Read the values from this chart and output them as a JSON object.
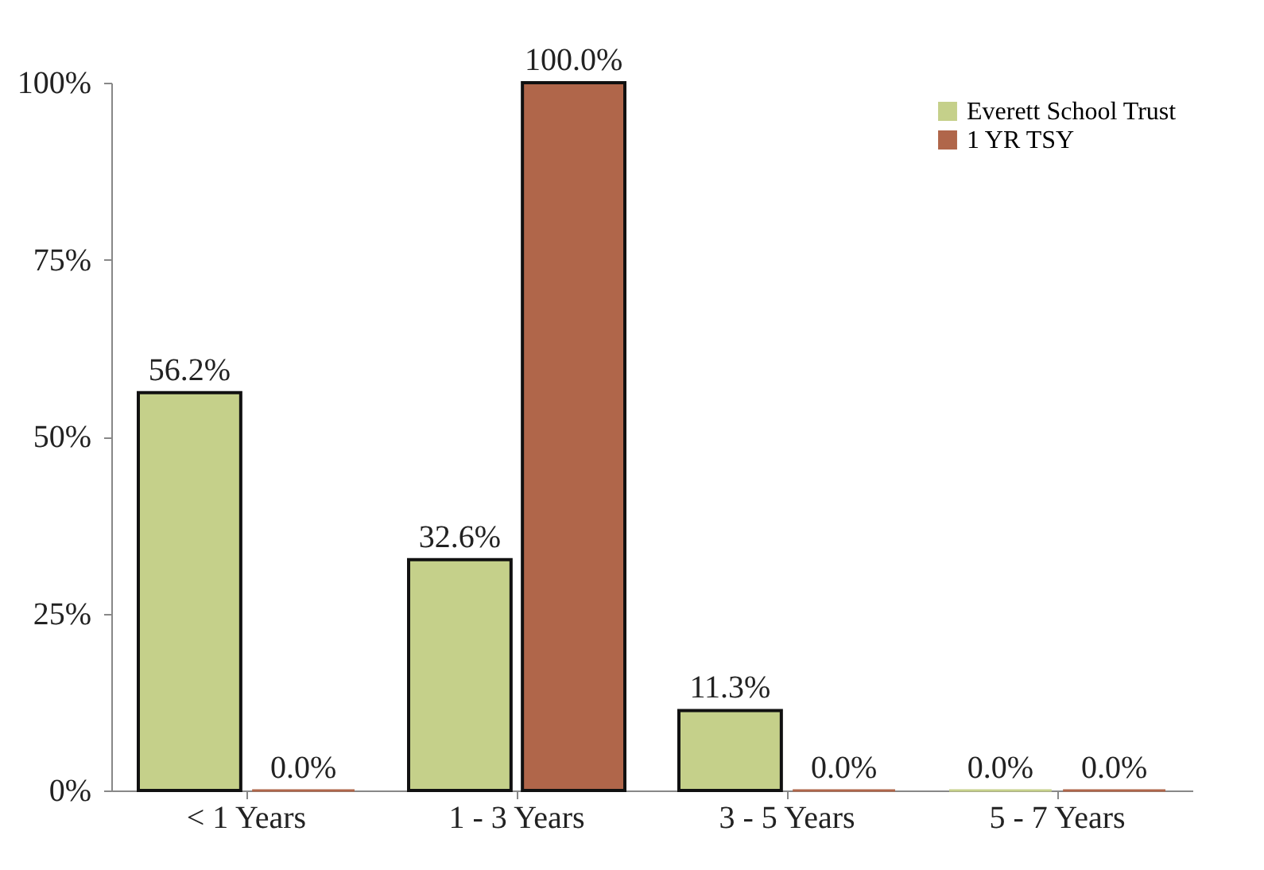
{
  "chart_data": {
    "type": "bar",
    "categories": [
      "< 1 Years",
      "1 - 3 Years",
      "3 - 5 Years",
      "5 - 7 Years"
    ],
    "series": [
      {
        "name": "Everett School Trust",
        "color": "#c5d08a",
        "values": [
          56.2,
          32.6,
          11.3,
          0.0
        ],
        "value_labels": [
          "56.2%",
          "32.6%",
          "11.3%",
          "0.0%"
        ]
      },
      {
        "name": "1 YR TSY",
        "color": "#b0664a",
        "values": [
          0.0,
          100.0,
          0.0,
          0.0
        ],
        "value_labels": [
          "0.0%",
          "100.0%",
          "0.0%",
          "0.0%"
        ]
      }
    ],
    "ylim": [
      0,
      100
    ],
    "yticks": [
      {
        "value": 0,
        "label": "0%"
      },
      {
        "value": 25,
        "label": "25%"
      },
      {
        "value": 50,
        "label": "50%"
      },
      {
        "value": 75,
        "label": "75%"
      },
      {
        "value": 100,
        "label": "100%"
      }
    ],
    "grid": false,
    "legend": "top right"
  }
}
